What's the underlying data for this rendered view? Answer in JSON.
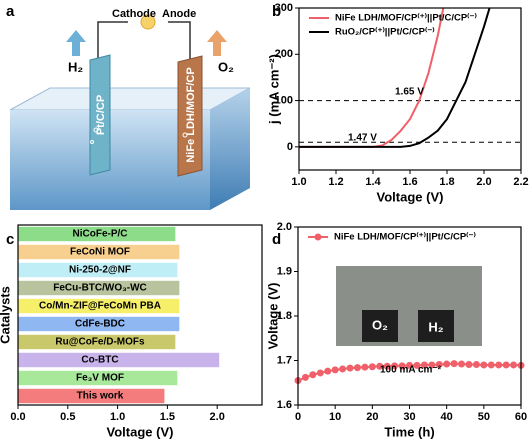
{
  "panel_a": {
    "panel": "a",
    "cathode": "Cathode",
    "anode": "Anode",
    "h2": "H₂",
    "o2": "O₂",
    "left_electrode": "Pt/C/CP",
    "right_electrode": "NiFe LDH/MOF/CP"
  },
  "chart_data": [
    {
      "type": "line",
      "panel": "b",
      "xlabel": "Voltage (V)",
      "ylabel": "j (mA cm⁻²)",
      "xlim": [
        1.0,
        2.2
      ],
      "xticks": [
        {
          "value": 1.0,
          "label": "1.0"
        },
        {
          "value": 1.2,
          "label": "1.2"
        },
        {
          "value": 1.4,
          "label": "1.4"
        },
        {
          "value": 1.6,
          "label": "1.6"
        },
        {
          "value": 1.8,
          "label": "1.8"
        },
        {
          "value": 2.0,
          "label": "2.0"
        },
        {
          "value": 2.2,
          "label": "2.2"
        }
      ],
      "ylim": [
        -50,
        300
      ],
      "yticks": [
        0,
        100,
        200,
        300
      ],
      "hlines": [
        10,
        100
      ],
      "annotations": [
        "1.65 V",
        "1.47 V"
      ],
      "legend": "upper left",
      "series": [
        {
          "name": "NiFe LDH/MOF/CP⁽⁺⁾||Pt/C/CP⁽⁻⁾",
          "color": "#f0606a",
          "x": [
            1.0,
            1.2,
            1.4,
            1.45,
            1.5,
            1.55,
            1.6,
            1.65,
            1.7,
            1.75,
            1.78
          ],
          "values": [
            0,
            0,
            0,
            3,
            15,
            35,
            60,
            100,
            160,
            240,
            300
          ]
        },
        {
          "name": "RuO₂/CP⁽⁺⁾||Pt/C/CP⁽⁻⁾",
          "color": "#000000",
          "x": [
            1.0,
            1.3,
            1.55,
            1.6,
            1.65,
            1.7,
            1.75,
            1.8,
            1.85,
            1.9,
            1.95,
            2.0,
            2.03
          ],
          "values": [
            0,
            0,
            0,
            2,
            8,
            20,
            35,
            60,
            100,
            140,
            200,
            260,
            300
          ]
        }
      ]
    },
    {
      "type": "hbar",
      "panel": "c",
      "xlabel": "Voltage (V)",
      "ylabel": "Catalysts",
      "xlim": [
        0,
        2.45
      ],
      "xticks": [
        {
          "value": 0,
          "label": "0.0"
        },
        {
          "value": 0.5,
          "label": "0.5"
        },
        {
          "value": 1.0,
          "label": "1.0"
        },
        {
          "value": 1.5,
          "label": "1.5"
        },
        {
          "value": 2.0,
          "label": "2.0"
        }
      ],
      "categories": [
        "NiCoFe-P/C",
        "FeCoNi MOF",
        "Ni-250-2@NF",
        "FeCu-BTC/WO₃-WC",
        "Co/Mn-ZIF@FeCoMn PBA",
        "CdFe-BDC",
        "Ru@CoFe/D-MOFs",
        "Co-BTC",
        "Fe₃V MOF",
        "This work"
      ],
      "values": [
        1.58,
        1.62,
        1.6,
        1.62,
        1.62,
        1.62,
        1.58,
        2.02,
        1.6,
        1.47
      ],
      "colors": [
        "#8ddc8a",
        "#f7cf8e",
        "#bfeef6",
        "#b9c39e",
        "#f6ef6a",
        "#8fb8f2",
        "#c9c86a",
        "#c8b4ea",
        "#a7e89a",
        "#f47c7c"
      ]
    },
    {
      "type": "line",
      "panel": "d",
      "markers": true,
      "xlabel": "Time (h)",
      "ylabel": "Voltage (V)",
      "xlim": [
        0,
        60
      ],
      "xticks": [
        0,
        10,
        20,
        30,
        40,
        50,
        60
      ],
      "ylim": [
        1.6,
        2.0
      ],
      "yticks": [
        1.6,
        1.7,
        1.8,
        1.9,
        {
          "value": 2.0,
          "label": "2.0"
        }
      ],
      "annotations": [
        "100 mA cm⁻²"
      ],
      "inset_labels": [
        "O₂",
        "H₂"
      ],
      "legend": "upper left",
      "series": [
        {
          "name": "NiFe LDH/MOF/CP⁽⁺⁾||Pt/C/CP⁽⁻⁾",
          "color": "#f0606a",
          "x": [
            0,
            2,
            4,
            6,
            8,
            10,
            12,
            14,
            16,
            18,
            20,
            22,
            24,
            26,
            28,
            30,
            32,
            34,
            36,
            38,
            40,
            42,
            44,
            46,
            48,
            50,
            52,
            54,
            56,
            58,
            60
          ],
          "values": [
            1.655,
            1.662,
            1.668,
            1.672,
            1.676,
            1.679,
            1.681,
            1.683,
            1.684,
            1.685,
            1.686,
            1.687,
            1.687,
            1.688,
            1.688,
            1.689,
            1.689,
            1.69,
            1.69,
            1.691,
            1.692,
            1.693,
            1.692,
            1.691,
            1.691,
            1.69,
            1.69,
            1.69,
            1.69,
            1.69,
            1.689
          ]
        }
      ]
    }
  ]
}
